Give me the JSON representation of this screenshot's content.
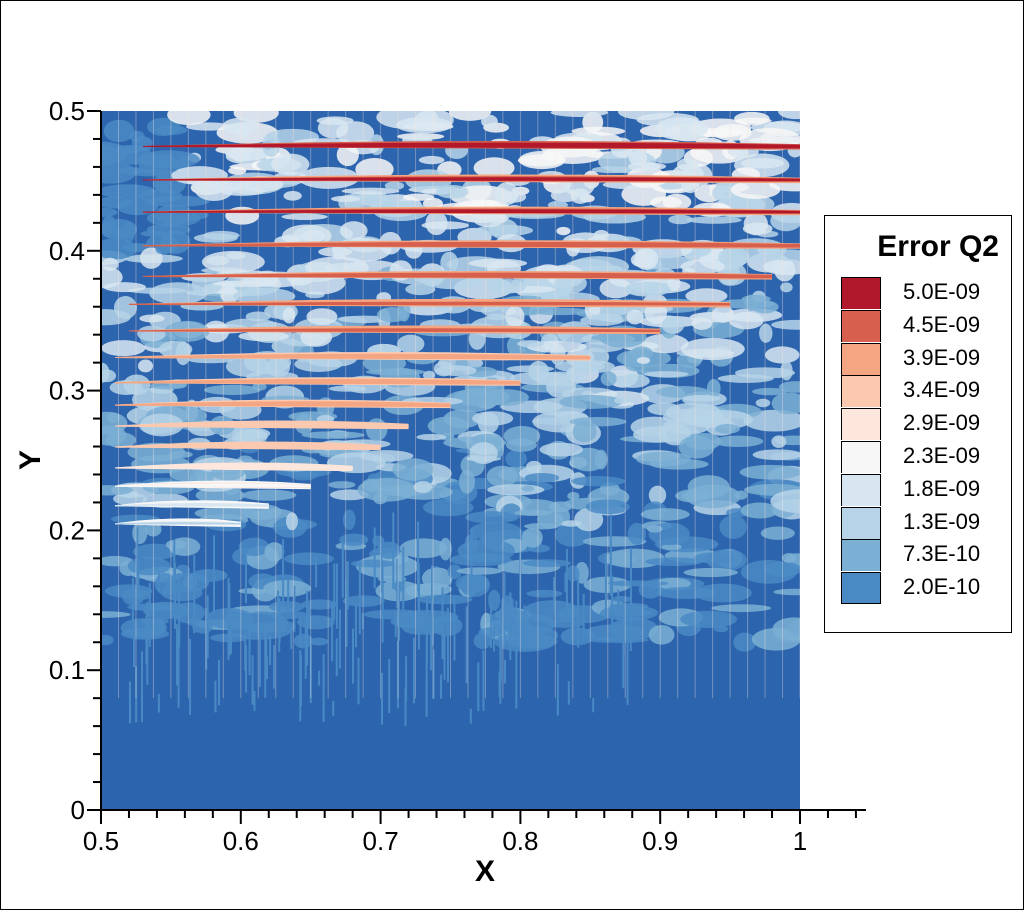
{
  "chart_data": {
    "type": "heatmap",
    "title": "",
    "xlabel": "X",
    "ylabel": "Y",
    "xlim": [
      0.5,
      1.0
    ],
    "ylim": [
      0,
      0.5
    ],
    "x_ticks": [
      "0.5",
      "0.6",
      "0.7",
      "0.8",
      "0.9",
      "1"
    ],
    "y_ticks": [
      "0",
      "0.1",
      "0.2",
      "0.3",
      "0.4",
      "0.5"
    ],
    "x_tick_values": [
      0.5,
      0.6,
      0.7,
      0.8,
      0.9,
      1.0
    ],
    "y_tick_values": [
      0,
      0.1,
      0.2,
      0.3,
      0.4,
      0.5
    ],
    "legend_title": "Error Q2",
    "legend_position": "right",
    "color_levels": [
      {
        "label": "5.0E-09",
        "value": 5e-09,
        "color": "#b2182b"
      },
      {
        "label": "4.5E-09",
        "value": 4.5e-09,
        "color": "#d6604d"
      },
      {
        "label": "3.9E-09",
        "value": 3.9e-09,
        "color": "#f4a582"
      },
      {
        "label": "3.4E-09",
        "value": 3.4e-09,
        "color": "#fbc9b0"
      },
      {
        "label": "2.9E-09",
        "value": 2.9e-09,
        "color": "#fde6dc"
      },
      {
        "label": "2.3E-09",
        "value": 2.3e-09,
        "color": "#f7f7f7"
      },
      {
        "label": "1.8E-09",
        "value": 1.8e-09,
        "color": "#d8e6f1"
      },
      {
        "label": "1.3E-09",
        "value": 1.3e-09,
        "color": "#b6d3e8"
      },
      {
        "label": "7.3E-10",
        "value": 7.3e-10,
        "color": "#7bafd4"
      },
      {
        "label": "2.0E-10",
        "value": 2e-10,
        "color": "#4a8ac4"
      },
      {
        "label": "",
        "value": 0,
        "color": "#2c64ad"
      }
    ],
    "bands": [
      {
        "y": 0.475,
        "x_start": 0.53,
        "x_end": 1.0,
        "intensity": 1.0
      },
      {
        "y": 0.451,
        "x_start": 0.53,
        "x_end": 1.0,
        "intensity": 0.95
      },
      {
        "y": 0.428,
        "x_start": 0.53,
        "x_end": 1.0,
        "intensity": 0.95
      },
      {
        "y": 0.404,
        "x_start": 0.53,
        "x_end": 1.0,
        "intensity": 0.9
      },
      {
        "y": 0.382,
        "x_start": 0.53,
        "x_end": 0.98,
        "intensity": 0.9
      },
      {
        "y": 0.362,
        "x_start": 0.52,
        "x_end": 0.95,
        "intensity": 0.85
      },
      {
        "y": 0.343,
        "x_start": 0.52,
        "x_end": 0.9,
        "intensity": 0.85
      },
      {
        "y": 0.324,
        "x_start": 0.51,
        "x_end": 0.85,
        "intensity": 0.8
      },
      {
        "y": 0.306,
        "x_start": 0.51,
        "x_end": 0.8,
        "intensity": 0.8
      },
      {
        "y": 0.29,
        "x_start": 0.51,
        "x_end": 0.75,
        "intensity": 0.75
      },
      {
        "y": 0.275,
        "x_start": 0.51,
        "x_end": 0.72,
        "intensity": 0.7
      },
      {
        "y": 0.26,
        "x_start": 0.51,
        "x_end": 0.7,
        "intensity": 0.65
      },
      {
        "y": 0.245,
        "x_start": 0.51,
        "x_end": 0.68,
        "intensity": 0.55
      },
      {
        "y": 0.232,
        "x_start": 0.51,
        "x_end": 0.65,
        "intensity": 0.45
      },
      {
        "y": 0.218,
        "x_start": 0.51,
        "x_end": 0.62,
        "intensity": 0.35
      },
      {
        "y": 0.205,
        "x_start": 0.51,
        "x_end": 0.6,
        "intensity": 0.3
      }
    ]
  }
}
